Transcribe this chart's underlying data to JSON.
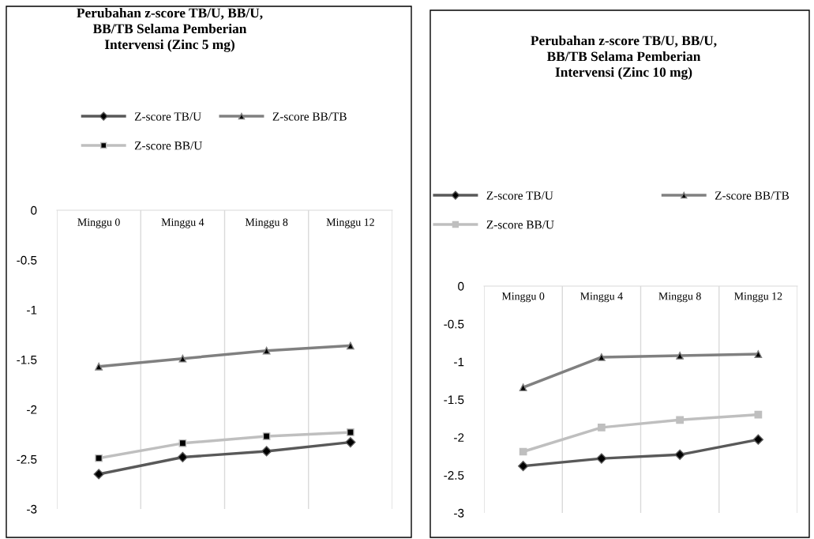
{
  "chart_data": [
    {
      "type": "line",
      "title": "Perubahan z-score TB/U, BB/U,\nBB/TB Selama Pemberian\nIntervensi (Zinc 5 mg)",
      "categories": [
        "Minggu 0",
        "Minggu 4",
        "Minggu 8",
        "Minggu 12"
      ],
      "series": [
        {
          "name": "Z-score TB/U",
          "color": "#595959",
          "marker": "diamond",
          "values": [
            -2.65,
            -2.48,
            -2.42,
            -2.33
          ]
        },
        {
          "name": "Z-score BB/U",
          "color": "#bfbfbf",
          "marker": "square",
          "values": [
            -2.49,
            -2.34,
            -2.27,
            -2.23
          ]
        },
        {
          "name": "Z-score BB/TB",
          "color": "#808080",
          "marker": "triangle",
          "values": [
            -1.57,
            -1.49,
            -1.41,
            -1.36
          ]
        }
      ],
      "ylim": [
        -3,
        0
      ],
      "yticks": [
        0,
        -0.5,
        -1,
        -1.5,
        -2,
        -2.5,
        -3
      ],
      "grid": "x",
      "legend": "top"
    },
    {
      "type": "line",
      "title": "Perubahan z-score TB/U, BB/U,\nBB/TB Selama Pemberian\nIntervensi (Zinc 10 mg)",
      "categories": [
        "Minggu 0",
        "Minggu 4",
        "Minggu 8",
        "Minggu 12"
      ],
      "series": [
        {
          "name": "Z-score TB/U",
          "color": "#595959",
          "marker": "diamond",
          "values": [
            -2.38,
            -2.28,
            -2.23,
            -2.03
          ]
        },
        {
          "name": "Z-score BB/U",
          "color": "#bfbfbf",
          "marker": "square",
          "values": [
            -2.19,
            -1.87,
            -1.77,
            -1.7
          ]
        },
        {
          "name": "Z-score BB/TB",
          "color": "#808080",
          "marker": "triangle",
          "values": [
            -1.34,
            -0.94,
            -0.92,
            -0.9
          ]
        }
      ],
      "ylim": [
        -3,
        0
      ],
      "yticks": [
        0,
        -0.5,
        -1,
        -1.5,
        -2,
        -2.5,
        -3
      ],
      "grid": "x",
      "legend": "top"
    }
  ]
}
